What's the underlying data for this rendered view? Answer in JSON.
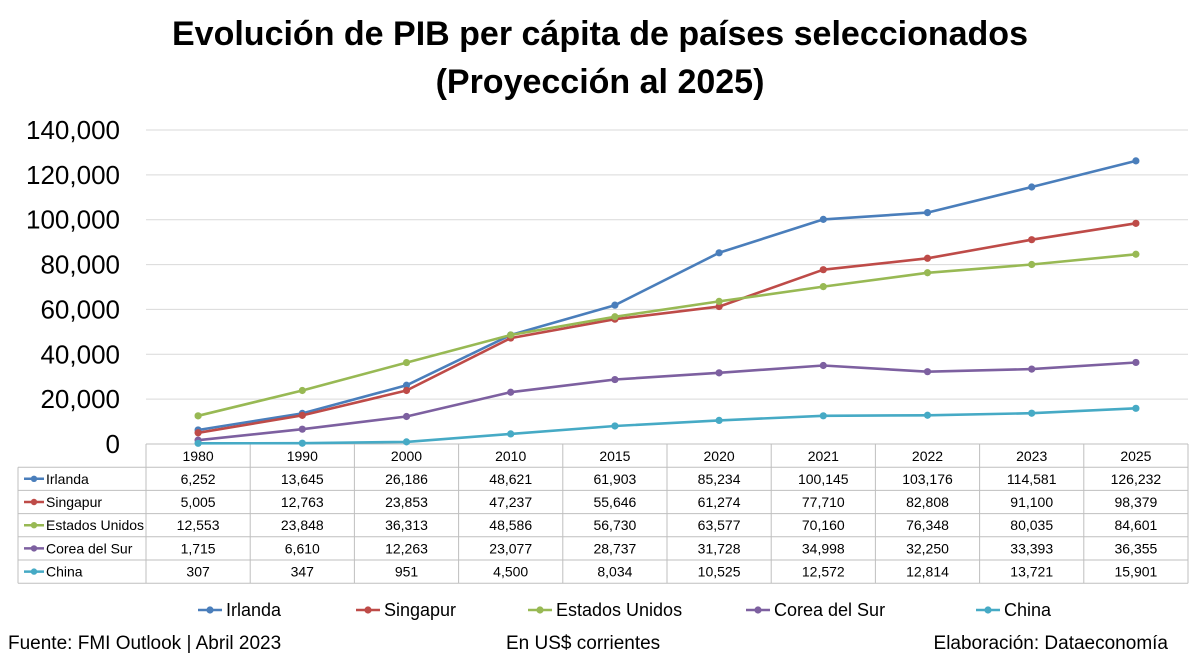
{
  "title_line1": "Evolución de PIB per cápita de países seleccionados",
  "title_line2": "(Proyección al 2025)",
  "footer": {
    "source": "Fuente: FMI Outlook | Abril 2023",
    "units": "En US$ corrientes",
    "credit": "Elaboración: Dataeconomía"
  },
  "chart_data": {
    "type": "line",
    "categories": [
      "1980",
      "1990",
      "2000",
      "2010",
      "2015",
      "2020",
      "2021",
      "2022",
      "2023",
      "2025"
    ],
    "y_ticks": [
      "140,000",
      "120,000",
      "100,000",
      "80,000",
      "60,000",
      "40,000",
      "20,000",
      "0"
    ],
    "ylim": [
      0,
      140000
    ],
    "grid": true,
    "legend_position": "bottom",
    "data_table": true,
    "series": [
      {
        "name": "Irlanda",
        "color": "#4a7ebb",
        "values": [
          6252,
          13645,
          26186,
          48621,
          61903,
          85234,
          100145,
          103176,
          114581,
          126232
        ],
        "labels": [
          "6,252",
          "13,645",
          "26,186",
          "48,621",
          "61,903",
          "85,234",
          "100,145",
          "103,176",
          "114,581",
          "126,232"
        ]
      },
      {
        "name": "Singapur",
        "color": "#be4b48",
        "values": [
          5005,
          12763,
          23853,
          47237,
          55646,
          61274,
          77710,
          82808,
          91100,
          98379
        ],
        "labels": [
          "5,005",
          "12,763",
          "23,853",
          "47,237",
          "55,646",
          "61,274",
          "77,710",
          "82,808",
          "91,100",
          "98,379"
        ]
      },
      {
        "name": "Estados Unidos",
        "color": "#98b954",
        "values": [
          12553,
          23848,
          36313,
          48586,
          56730,
          63577,
          70160,
          76348,
          80035,
          84601
        ],
        "labels": [
          "12,553",
          "23,848",
          "36,313",
          "48,586",
          "56,730",
          "63,577",
          "70,160",
          "76,348",
          "80,035",
          "84,601"
        ]
      },
      {
        "name": "Corea del Sur",
        "color": "#7d60a0",
        "values": [
          1715,
          6610,
          12263,
          23077,
          28737,
          31728,
          34998,
          32250,
          33393,
          36355
        ],
        "labels": [
          "1,715",
          "6,610",
          "12,263",
          "23,077",
          "28,737",
          "31,728",
          "34,998",
          "32,250",
          "33,393",
          "36,355"
        ]
      },
      {
        "name": "China",
        "color": "#46aac5",
        "values": [
          307,
          347,
          951,
          4500,
          8034,
          10525,
          12572,
          12814,
          13721,
          15901
        ],
        "labels": [
          "307",
          "347",
          "951",
          "4,500",
          "8,034",
          "10,525",
          "12,572",
          "12,814",
          "13,721",
          "15,901"
        ]
      }
    ]
  }
}
